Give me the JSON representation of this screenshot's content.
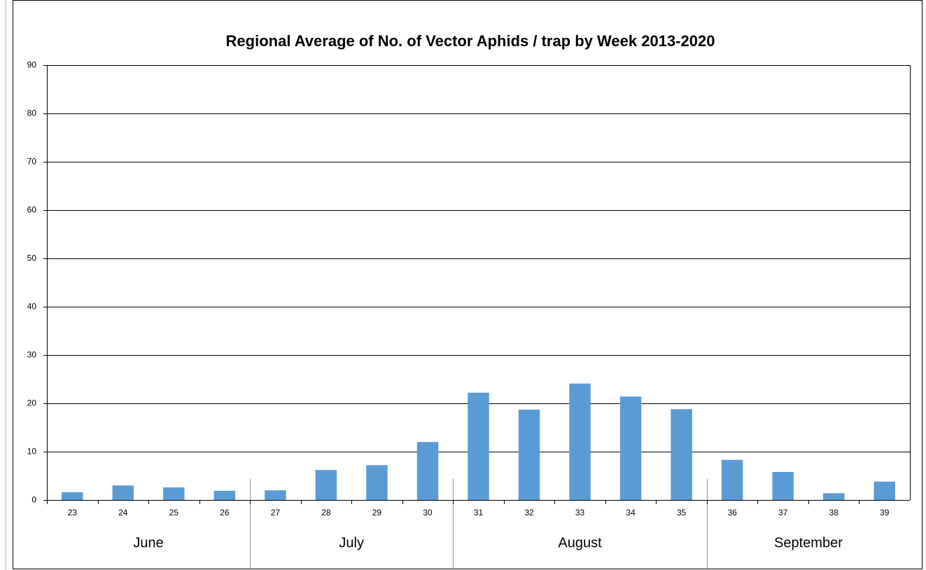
{
  "chart_data": {
    "type": "bar",
    "title": "Regional Average of No. of Vector Aphids  / trap by Week 2013-2020",
    "color": "#5b9bd5",
    "groups": [
      {
        "name": "June",
        "categories": [
          "23",
          "24",
          "25",
          "26"
        ],
        "values": [
          1.6,
          3.0,
          2.6,
          1.9
        ]
      },
      {
        "name": "July",
        "categories": [
          "27",
          "28",
          "29",
          "30"
        ],
        "values": [
          2.0,
          6.2,
          7.2,
          12.0
        ]
      },
      {
        "name": "August",
        "categories": [
          "31",
          "32",
          "33",
          "34",
          "35"
        ],
        "values": [
          22.2,
          18.7,
          24.1,
          21.4,
          18.8
        ]
      },
      {
        "name": "September",
        "categories": [
          "36",
          "37",
          "38",
          "39"
        ],
        "values": [
          8.3,
          5.8,
          1.4,
          3.8
        ]
      }
    ],
    "ylim": [
      0,
      90
    ],
    "yticks": [
      0,
      10,
      20,
      30,
      40,
      50,
      60,
      70,
      80,
      90
    ],
    "grid": true
  }
}
